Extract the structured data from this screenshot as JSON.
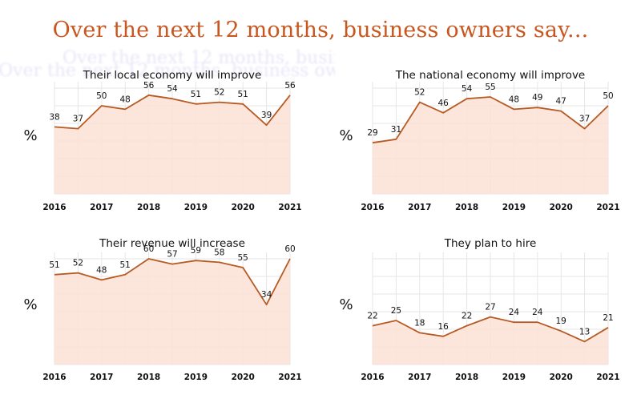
{
  "title": "Over the next 12 months, business owners say...",
  "colors": {
    "title": "#c8561f",
    "line": "#b75a23",
    "fill": "#fbe0d5",
    "grid": "#e6e6e6"
  },
  "chart_data": [
    {
      "type": "area",
      "title": "Their local economy will improve",
      "ylabel": "%",
      "x_ticks": [
        "2016",
        "2017",
        "2018",
        "2019",
        "2020",
        "2021"
      ],
      "x": [
        2016,
        2016.5,
        2017,
        2017.5,
        2018,
        2018.5,
        2019,
        2019.5,
        2020,
        2020.5,
        2021
      ],
      "values": [
        38,
        37,
        50,
        48,
        56,
        54,
        51,
        52,
        51,
        39,
        56
      ],
      "ylim": [
        0,
        60
      ],
      "grid": true
    },
    {
      "type": "area",
      "title": "The national economy will improve",
      "ylabel": "%",
      "x_ticks": [
        "2016",
        "2017",
        "2018",
        "2019",
        "2020",
        "2021"
      ],
      "x": [
        2016,
        2016.5,
        2017,
        2017.5,
        2018,
        2018.5,
        2019,
        2019.5,
        2020,
        2020.5,
        2021
      ],
      "values": [
        29,
        31,
        52,
        46,
        54,
        55,
        48,
        49,
        47,
        37,
        50
      ],
      "ylim": [
        0,
        60
      ],
      "grid": true
    },
    {
      "type": "area",
      "title": "Their revenue will increase",
      "ylabel": "%",
      "x_ticks": [
        "2016",
        "2017",
        "2018",
        "2019",
        "2020",
        "2021"
      ],
      "x": [
        2016,
        2016.5,
        2017,
        2017.5,
        2018,
        2018.5,
        2019,
        2019.5,
        2020,
        2020.5,
        2021
      ],
      "values": [
        51,
        52,
        48,
        51,
        60,
        57,
        59,
        58,
        55,
        34,
        60
      ],
      "ylim": [
        0,
        60
      ],
      "grid": true
    },
    {
      "type": "area",
      "title": "They plan to hire",
      "ylabel": "%",
      "x_ticks": [
        "2016",
        "2017",
        "2018",
        "2019",
        "2020",
        "2021"
      ],
      "x": [
        2016,
        2016.5,
        2017,
        2017.5,
        2018,
        2018.5,
        2019,
        2019.5,
        2020,
        2020.5,
        2021
      ],
      "values": [
        22,
        25,
        18,
        16,
        22,
        27,
        24,
        24,
        19,
        13,
        21
      ],
      "ylim": [
        0,
        60
      ],
      "grid": true
    }
  ]
}
